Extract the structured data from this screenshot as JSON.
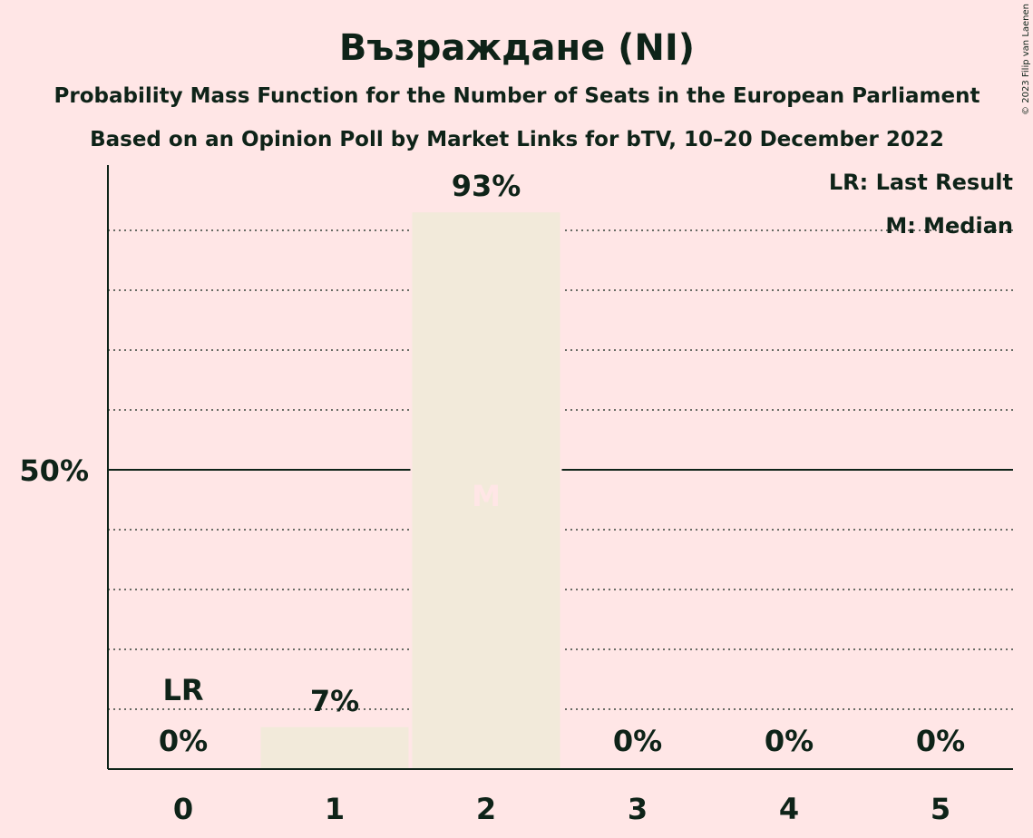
{
  "chart_data": {
    "type": "bar",
    "title": "Възраждане (NI)",
    "subtitle1": "Probability Mass Function for the Number of Seats in the European Parliament",
    "subtitle2": "Based on an Opinion Poll by Market Links for bTV, 10–20 December 2022",
    "categories": [
      "0",
      "1",
      "2",
      "3",
      "4",
      "5"
    ],
    "values": [
      0,
      7,
      93,
      0,
      0,
      0
    ],
    "value_labels": [
      "0%",
      "7%",
      "93%",
      "0%",
      "0%",
      "0%"
    ],
    "ylim": [
      0,
      100
    ],
    "y_tick_label": "50%",
    "y_tick_value": 50,
    "gridlines": [
      10,
      20,
      30,
      40,
      60,
      70,
      80,
      90
    ],
    "last_result_index": 0,
    "last_result_label": "LR",
    "median_index": 2,
    "median_label": "M",
    "legend": [
      "LR: Last Result",
      "M: Median"
    ],
    "legend_position": "top-right",
    "copyright": "© 2023 Filip van Laenen",
    "colors": {
      "background": "#FFE6E6",
      "bar": "#F2EADA",
      "text": "#0E2318",
      "median_mark": "#FFE6E6"
    }
  }
}
